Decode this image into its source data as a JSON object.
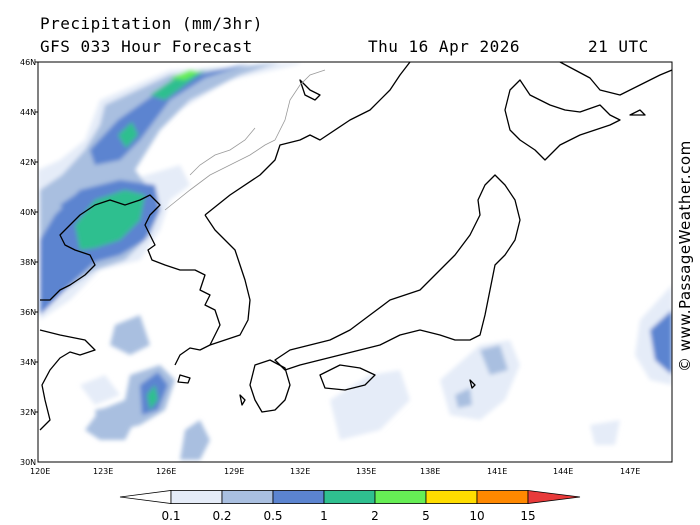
{
  "header": {
    "title": "Precipitation (mm/3hr)",
    "model": "GFS 033 Hour Forecast",
    "date": "Thu 16 Apr 2026",
    "time": "21 UTC"
  },
  "map": {
    "lat_labels": [
      "46N",
      "44N",
      "42N",
      "40N",
      "38N",
      "36N",
      "34N",
      "32N",
      "30N"
    ],
    "lon_labels": [
      "120E",
      "123E",
      "126E",
      "129E",
      "132E",
      "135E",
      "138E",
      "141E",
      "144E",
      "147E"
    ],
    "credit": "© www.PassageWeather.com",
    "land_line_color": "#000000",
    "border_color": "#9a9a9a"
  },
  "colorbar": {
    "labels": [
      "0.1",
      "0.2",
      "0.5",
      "1",
      "2",
      "5",
      "10",
      "15"
    ],
    "colors": [
      "#ffffff",
      "#e5ecf8",
      "#a9bfe0",
      "#5b84d0",
      "#2fbf8f",
      "#66ee55",
      "#ffdd00",
      "#ff8800",
      "#e83a3a"
    ]
  }
}
